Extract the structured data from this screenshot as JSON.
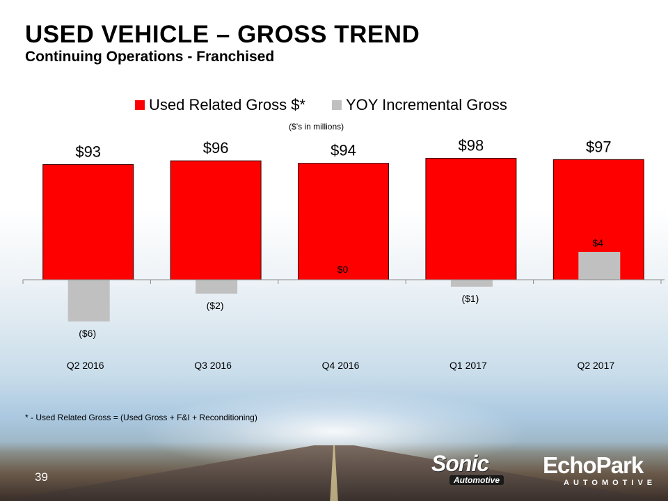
{
  "title": "USED VEHICLE – GROSS TREND",
  "subtitle": "Continuing Operations - Franchised",
  "units_note": "($’s in millions)",
  "footnote": "* - Used Related Gross  = (Used Gross + F&I + Reconditioning)",
  "page_number": "39",
  "logos": {
    "sonic": "Sonic",
    "sonic_sub": "Automotive",
    "echopark": "EchoPark",
    "echopark_sub": "AUTOMOTIVE"
  },
  "colors": {
    "used_gross": "#ff0000",
    "yoy": "#c0c0c0"
  },
  "chart_data": {
    "type": "bar",
    "title": "",
    "xlabel": "",
    "ylabel": "",
    "categories": [
      "Q2 2016",
      "Q3 2016",
      "Q4 2016",
      "Q1 2017",
      "Q2 2017"
    ],
    "series": [
      {
        "name": "Used Related Gross $*",
        "values": [
          93,
          96,
          94,
          98,
          97
        ],
        "labels": [
          "$93",
          "$96",
          "$94",
          "$98",
          "$97"
        ]
      },
      {
        "name": "YOY Incremental Gross",
        "values": [
          -6,
          -2,
          0,
          -1,
          4
        ],
        "labels": [
          "($6)",
          "($2)",
          "$0",
          "($1)",
          "$4"
        ]
      }
    ],
    "ylim": [
      -10,
      120
    ],
    "legend": "top"
  }
}
